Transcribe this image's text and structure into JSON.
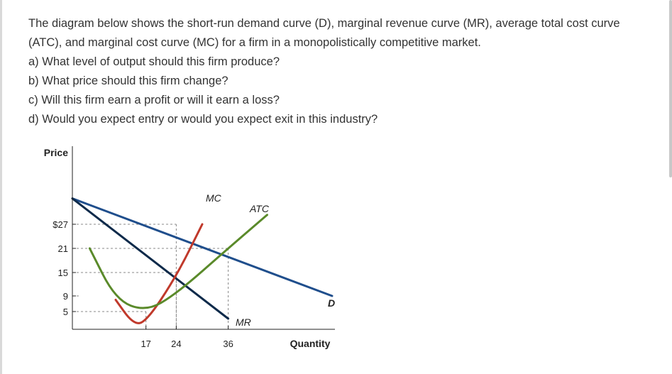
{
  "question": {
    "intro": "The diagram below shows the short-run demand curve (D), marginal revenue curve (MR), average total cost curve (ATC), and marginal cost curve (MC) for a firm in a monopolistically competitive market.",
    "parts": [
      "a) What level of output should this firm produce?",
      "b) What price should this firm change?",
      "c) Will this firm earn a profit or will it earn a loss?",
      "d) Would you expect entry or would you expect exit in this industry?"
    ]
  },
  "chart_data": {
    "type": "line",
    "xlabel": "Quantity",
    "ylabel": "Price",
    "x_ticks": [
      "17",
      "24",
      "36"
    ],
    "y_ticks": [
      "$27",
      "21",
      "15",
      "9",
      "5"
    ],
    "grid": false,
    "series": [
      {
        "name": "D",
        "color": "#1f4e8c",
        "points": [
          [
            0,
            38
          ],
          [
            60,
            9
          ]
        ]
      },
      {
        "name": "MR",
        "color": "#0d2a4a",
        "points": [
          [
            0,
            38
          ],
          [
            36,
            3
          ]
        ]
      },
      {
        "name": "MC",
        "color": "#c0392b",
        "points": [
          [
            10,
            8
          ],
          [
            14,
            1.5
          ],
          [
            17,
            2
          ],
          [
            24,
            14
          ],
          [
            30,
            27
          ]
        ]
      },
      {
        "name": "ATC",
        "color": "#5a8a2a",
        "points": [
          [
            4,
            21
          ],
          [
            10,
            8
          ],
          [
            17,
            5
          ],
          [
            24,
            9.5
          ],
          [
            36,
            21
          ],
          [
            45,
            31
          ]
        ]
      }
    ],
    "reference_points": [
      {
        "x": 24,
        "y": 27
      },
      {
        "x": 24,
        "y": 15
      },
      {
        "x": 36,
        "y": 21
      },
      {
        "x": 17,
        "y": 5
      }
    ]
  },
  "colors": {
    "text": "#333333",
    "axis": "#222222",
    "guide": "#888888"
  }
}
